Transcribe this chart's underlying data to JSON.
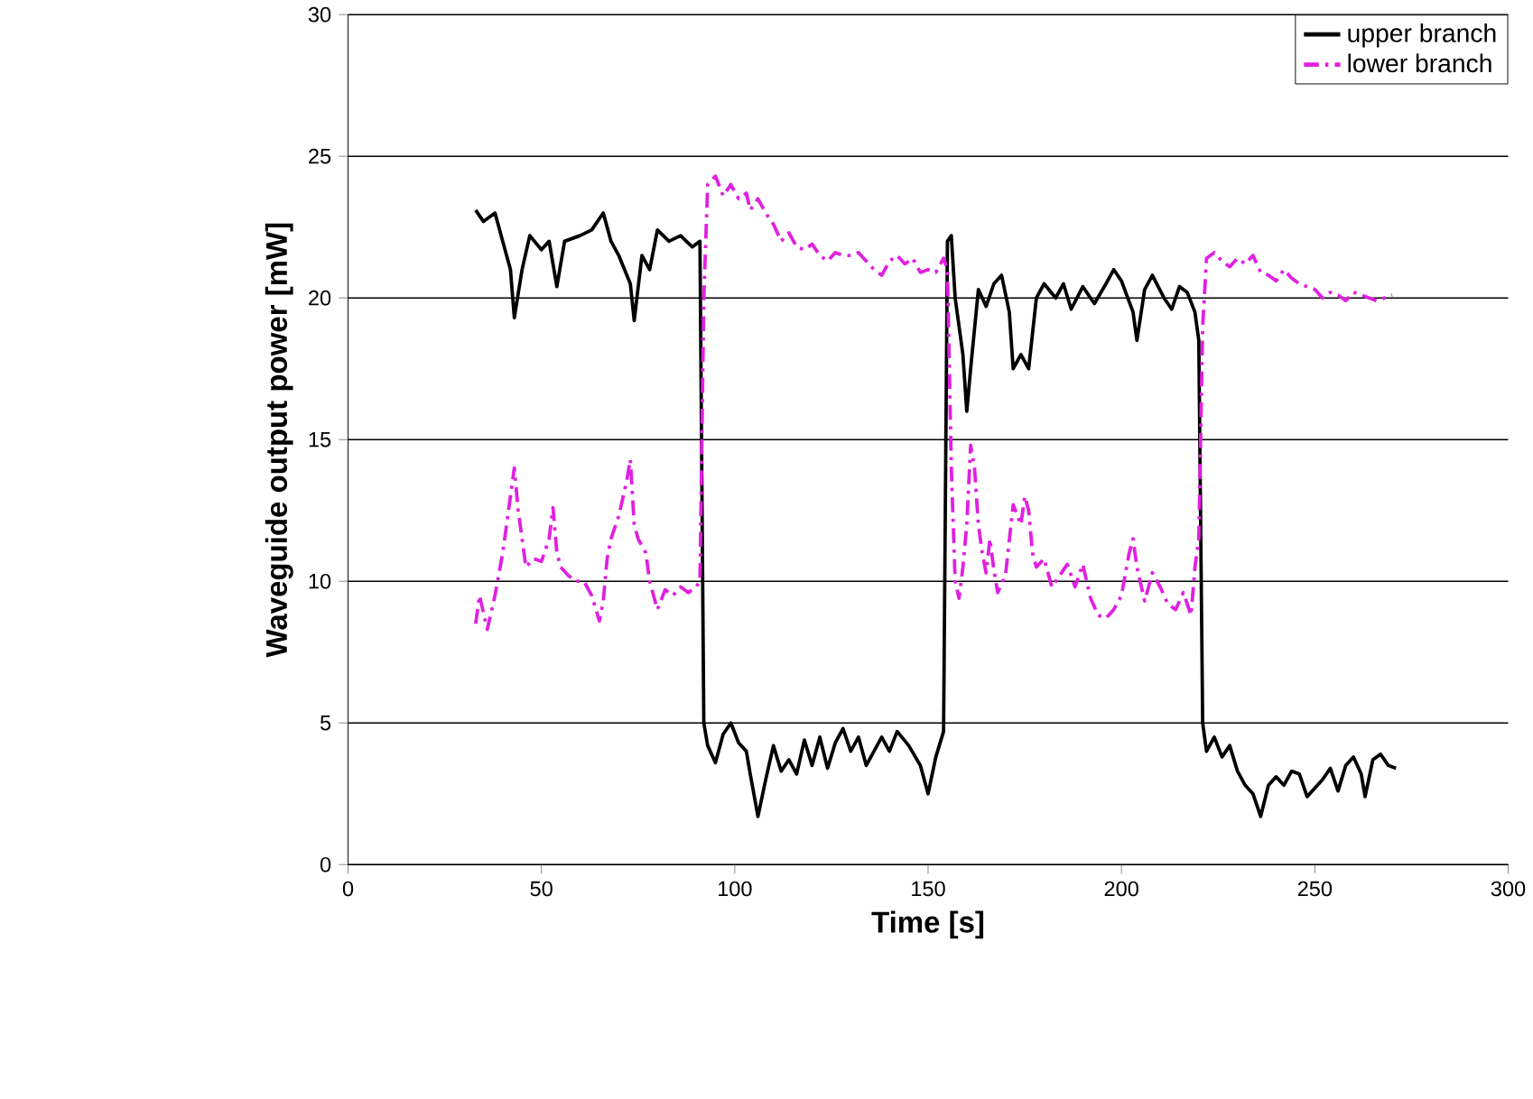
{
  "chart_data": {
    "type": "line",
    "xlabel": "Time [s]",
    "ylabel": "Waveguide output power [mW]",
    "xlim": [
      0,
      300
    ],
    "xticks": [
      0,
      50,
      100,
      150,
      200,
      250,
      300
    ],
    "ylim": [
      0,
      30
    ],
    "yticks": [
      0,
      5,
      10,
      15,
      20,
      25,
      30
    ],
    "grid": "y",
    "legend": "top right",
    "marker": "none",
    "series": [
      {
        "name": "upper branch",
        "color": "#000000",
        "line_style": "solid",
        "x": [
          33,
          35,
          38,
          40,
          42,
          43,
          45,
          47,
          50,
          52,
          54,
          56,
          60,
          63,
          66,
          68,
          70,
          73,
          74,
          76,
          78,
          80,
          83,
          86,
          89,
          91,
          92,
          93,
          95,
          97,
          99,
          101,
          103,
          104,
          106,
          108,
          110,
          112,
          114,
          116,
          118,
          120,
          122,
          124,
          126,
          128,
          130,
          132,
          134,
          136,
          138,
          140,
          142,
          145,
          148,
          150,
          152,
          154,
          155,
          156,
          157,
          159,
          160,
          161,
          163,
          165,
          167,
          169,
          171,
          172,
          174,
          176,
          178,
          180,
          183,
          185,
          187,
          190,
          193,
          196,
          198,
          200,
          203,
          204,
          206,
          208,
          211,
          213,
          215,
          217,
          219,
          220,
          221,
          222,
          224,
          226,
          228,
          230,
          232,
          234,
          236,
          238,
          240,
          242,
          244,
          246,
          248,
          250,
          252,
          254,
          256,
          258,
          260,
          262,
          263,
          265,
          267,
          269,
          271
        ],
        "values": [
          23.1,
          22.7,
          23,
          22,
          21,
          19.3,
          21,
          22.2,
          21.7,
          22,
          20.4,
          22,
          22.2,
          22.4,
          23,
          22,
          21.5,
          20.5,
          19.2,
          21.5,
          21,
          22.4,
          22,
          22.2,
          21.8,
          22,
          5,
          4.2,
          3.6,
          4.6,
          5,
          4.3,
          4.0,
          3.2,
          1.7,
          3.0,
          4.2,
          3.3,
          3.7,
          3.2,
          4.4,
          3.5,
          4.5,
          3.4,
          4.3,
          4.8,
          4.0,
          4.5,
          3.5,
          4.0,
          4.5,
          4.0,
          4.7,
          4.2,
          3.5,
          2.5,
          3.8,
          4.7,
          22,
          22.2,
          20,
          18,
          16,
          17.5,
          20.3,
          19.7,
          20.5,
          20.8,
          19.5,
          17.5,
          18,
          17.5,
          20,
          20.5,
          20,
          20.5,
          19.6,
          20.4,
          19.8,
          20.5,
          21,
          20.6,
          19.5,
          18.5,
          20.3,
          20.8,
          20,
          19.6,
          20.4,
          20.2,
          19.5,
          18.5,
          5,
          4,
          4.5,
          3.8,
          4.2,
          3.3,
          2.8,
          2.5,
          1.7,
          2.8,
          3.1,
          2.8,
          3.3,
          3.2,
          2.4,
          2.7,
          3.0,
          3.4,
          2.6,
          3.5,
          3.8,
          3.2,
          2.4,
          3.7,
          3.9,
          3.5,
          3.4
        ]
      },
      {
        "name": "lower branch",
        "color": "#e020e0",
        "line_style": "dashed",
        "x": [
          33,
          34,
          36,
          38,
          40,
          42,
          43,
          44,
          45,
          46,
          48,
          50,
          52,
          53,
          54,
          55,
          57,
          59,
          61,
          63,
          65,
          66,
          67,
          68,
          70,
          72,
          73,
          74,
          75,
          77,
          78,
          80,
          82,
          84,
          86,
          88,
          90,
          91,
          92,
          93,
          95,
          97,
          99,
          101,
          103,
          104,
          106,
          108,
          110,
          112,
          114,
          116,
          118,
          120,
          122,
          124,
          126,
          128,
          130,
          132,
          134,
          136,
          138,
          140,
          142,
          144,
          146,
          148,
          150,
          152,
          154,
          155,
          156,
          157,
          158,
          159,
          160,
          161,
          162,
          163,
          164,
          165,
          166,
          167,
          168,
          170,
          172,
          174,
          175,
          176,
          177,
          178,
          180,
          182,
          184,
          186,
          188,
          190,
          192,
          194,
          196,
          198,
          200,
          202,
          203,
          204,
          206,
          208,
          210,
          212,
          214,
          216,
          218,
          219,
          220,
          221,
          222,
          224,
          226,
          228,
          230,
          232,
          234,
          236,
          238,
          240,
          242,
          244,
          246,
          248,
          250,
          252,
          254,
          256,
          258,
          260,
          262,
          264,
          266,
          268,
          270
        ],
        "values": [
          8.5,
          9.5,
          8.3,
          9.5,
          11,
          13,
          14,
          12.5,
          11.5,
          10.5,
          10.8,
          10.7,
          11.5,
          12.6,
          11,
          10.5,
          10.2,
          10,
          10.0,
          9.5,
          8.6,
          9.3,
          10.8,
          11.5,
          12.3,
          13.5,
          14.3,
          12,
          11.5,
          11,
          10,
          9,
          9.7,
          9.5,
          9.8,
          9.6,
          9.8,
          10,
          20,
          24,
          24.3,
          23.6,
          24.0,
          23.5,
          23.7,
          23.1,
          23.5,
          23.0,
          22.6,
          22.0,
          22.3,
          21.8,
          21.7,
          21.9,
          21.5,
          21.3,
          21.6,
          21.5,
          21.5,
          21.6,
          21.3,
          21.0,
          20.8,
          21.3,
          21.5,
          21.2,
          21.4,
          20.9,
          21.0,
          20.9,
          21.4,
          21,
          14,
          10,
          9.4,
          10.5,
          12,
          14.8,
          14,
          12,
          11,
          10.3,
          11.5,
          10.4,
          9.6,
          10.2,
          12.7,
          12,
          13,
          12.5,
          11,
          10.5,
          10.8,
          9.8,
          10.2,
          10.6,
          9.8,
          10.6,
          9.4,
          8.8,
          8.7,
          9.0,
          9.5,
          11,
          11.5,
          10.5,
          9.3,
          10.3,
          9.8,
          9.2,
          9.0,
          9.6,
          8.8,
          10.5,
          11.5,
          19,
          21.4,
          21.6,
          21.3,
          21.1,
          21.4,
          21.2,
          21.5,
          20.9,
          20.8,
          20.6,
          21.0,
          20.7,
          20.5,
          20.4,
          20.3,
          20.0,
          20.2,
          20.1,
          19.9,
          20.2,
          20.1,
          20.0,
          19.9,
          20.0,
          20.1
        ]
      }
    ]
  }
}
